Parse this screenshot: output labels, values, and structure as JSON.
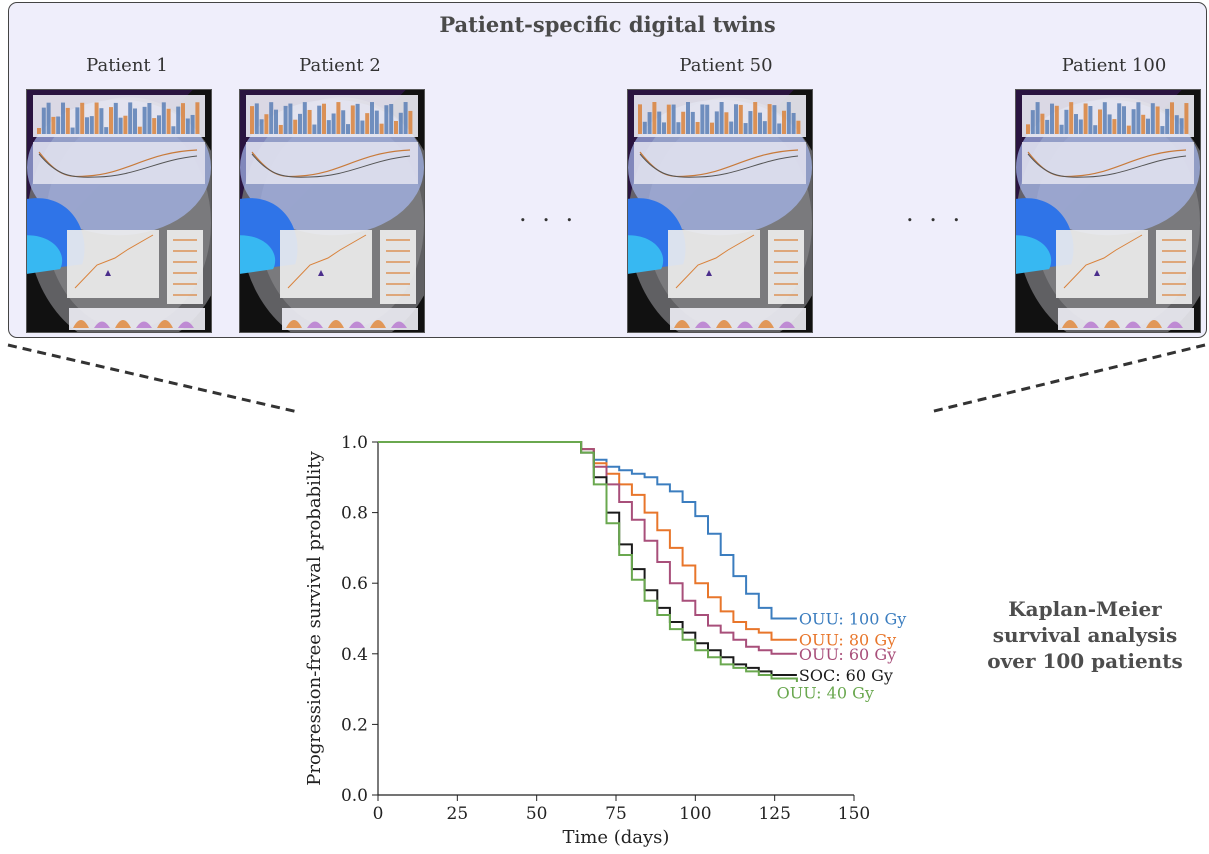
{
  "panel": {
    "title": "Patient-specific digital twins",
    "patients": [
      "Patient 1",
      "Patient 2",
      "Patient 50",
      "Patient 100"
    ],
    "ellipsis": ". . ."
  },
  "side_label": [
    "Kaplan-Meier",
    "survival analysis",
    "over 100 patients"
  ],
  "chart_data": {
    "type": "line",
    "xlabel": "Time (days)",
    "ylabel": "Progression-free survival probability",
    "xlim": [
      0,
      150
    ],
    "ylim": [
      0,
      1.0
    ],
    "xticks": [
      0,
      25,
      50,
      75,
      100,
      125,
      150
    ],
    "yticks": [
      0.0,
      0.2,
      0.4,
      0.6,
      0.8,
      1.0
    ],
    "grid": false,
    "series": [
      {
        "name": "OUU: 100 Gy",
        "color": "#3b7dbf",
        "points": [
          [
            0,
            1.0
          ],
          [
            60,
            1.0
          ],
          [
            64,
            0.98
          ],
          [
            68,
            0.95
          ],
          [
            72,
            0.93
          ],
          [
            76,
            0.92
          ],
          [
            80,
            0.91
          ],
          [
            84,
            0.9
          ],
          [
            88,
            0.88
          ],
          [
            92,
            0.86
          ],
          [
            96,
            0.83
          ],
          [
            100,
            0.79
          ],
          [
            104,
            0.74
          ],
          [
            108,
            0.68
          ],
          [
            112,
            0.62
          ],
          [
            116,
            0.57
          ],
          [
            120,
            0.53
          ],
          [
            124,
            0.5
          ],
          [
            132,
            0.5
          ]
        ]
      },
      {
        "name": "OUU: 80 Gy",
        "color": "#e8762b",
        "points": [
          [
            0,
            1.0
          ],
          [
            60,
            1.0
          ],
          [
            64,
            0.98
          ],
          [
            68,
            0.94
          ],
          [
            72,
            0.91
          ],
          [
            76,
            0.88
          ],
          [
            80,
            0.85
          ],
          [
            84,
            0.8
          ],
          [
            88,
            0.75
          ],
          [
            92,
            0.7
          ],
          [
            96,
            0.65
          ],
          [
            100,
            0.6
          ],
          [
            104,
            0.56
          ],
          [
            108,
            0.52
          ],
          [
            112,
            0.49
          ],
          [
            116,
            0.47
          ],
          [
            120,
            0.46
          ],
          [
            124,
            0.44
          ],
          [
            132,
            0.44
          ]
        ]
      },
      {
        "name": "OUU: 60 Gy",
        "color": "#a84f7a",
        "points": [
          [
            0,
            1.0
          ],
          [
            60,
            1.0
          ],
          [
            64,
            0.98
          ],
          [
            68,
            0.93
          ],
          [
            72,
            0.88
          ],
          [
            76,
            0.83
          ],
          [
            80,
            0.78
          ],
          [
            84,
            0.72
          ],
          [
            88,
            0.66
          ],
          [
            92,
            0.6
          ],
          [
            96,
            0.55
          ],
          [
            100,
            0.51
          ],
          [
            104,
            0.48
          ],
          [
            108,
            0.46
          ],
          [
            112,
            0.44
          ],
          [
            116,
            0.42
          ],
          [
            120,
            0.41
          ],
          [
            124,
            0.4
          ],
          [
            132,
            0.4
          ]
        ]
      },
      {
        "name": "SOC: 60 Gy",
        "color": "#1a1a1a",
        "points": [
          [
            0,
            1.0
          ],
          [
            60,
            1.0
          ],
          [
            64,
            0.97
          ],
          [
            68,
            0.9
          ],
          [
            72,
            0.8
          ],
          [
            76,
            0.71
          ],
          [
            80,
            0.64
          ],
          [
            84,
            0.58
          ],
          [
            88,
            0.53
          ],
          [
            92,
            0.49
          ],
          [
            96,
            0.46
          ],
          [
            100,
            0.43
          ],
          [
            104,
            0.41
          ],
          [
            108,
            0.39
          ],
          [
            112,
            0.37
          ],
          [
            116,
            0.36
          ],
          [
            120,
            0.35
          ],
          [
            124,
            0.34
          ],
          [
            132,
            0.34
          ]
        ]
      },
      {
        "name": "OUU: 40 Gy",
        "color": "#6aa84f",
        "points": [
          [
            0,
            1.0
          ],
          [
            60,
            1.0
          ],
          [
            64,
            0.97
          ],
          [
            68,
            0.88
          ],
          [
            72,
            0.77
          ],
          [
            76,
            0.68
          ],
          [
            80,
            0.61
          ],
          [
            84,
            0.55
          ],
          [
            88,
            0.51
          ],
          [
            92,
            0.47
          ],
          [
            96,
            0.44
          ],
          [
            100,
            0.41
          ],
          [
            104,
            0.39
          ],
          [
            108,
            0.37
          ],
          [
            112,
            0.36
          ],
          [
            116,
            0.35
          ],
          [
            120,
            0.34
          ],
          [
            124,
            0.33
          ],
          [
            132,
            0.32
          ]
        ]
      }
    ],
    "annotations": [
      {
        "text": "OUU: 100 Gy",
        "x": 132,
        "y": 0.5,
        "color": "#3b7dbf"
      },
      {
        "text": "OUU: 80 Gy",
        "x": 132,
        "y": 0.44,
        "color": "#e8762b"
      },
      {
        "text": "OUU: 60 Gy",
        "x": 132,
        "y": 0.4,
        "color": "#a84f7a"
      },
      {
        "text": "SOC: 60 Gy",
        "x": 132,
        "y": 0.34,
        "color": "#1a1a1a"
      },
      {
        "text": "OUU: 40 Gy",
        "x": 125,
        "y": 0.29,
        "color": "#6aa84f"
      }
    ]
  }
}
